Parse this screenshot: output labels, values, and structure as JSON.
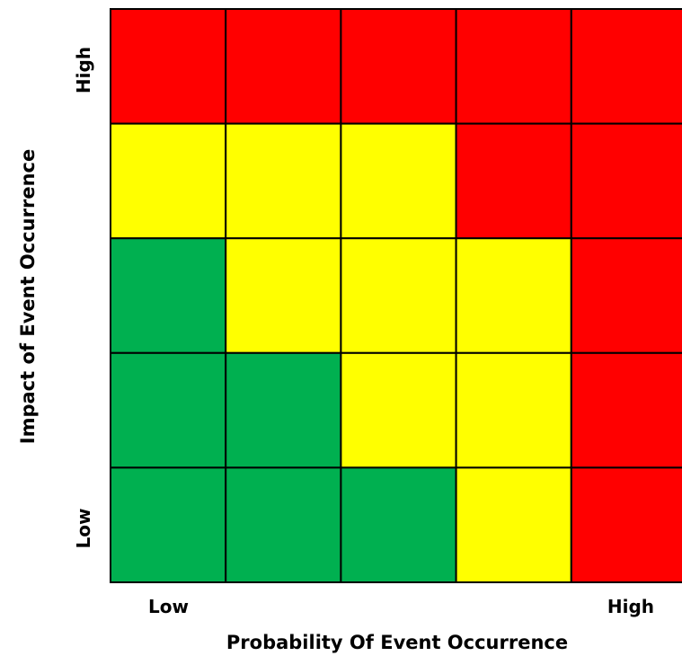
{
  "chart_data": {
    "type": "heatmap",
    "xlabel": "Probability Of Event Occurrence",
    "ylabel": "Impact of Event Occurrence",
    "x_tick_labels": {
      "low": "Low",
      "high": "High"
    },
    "y_tick_labels": {
      "low": "Low",
      "high": "High"
    },
    "rows": 5,
    "cols": 5,
    "row_order": "top-to-bottom (High impact first)",
    "colors": {
      "red": "#ff0000",
      "yellow": "#ffff00",
      "green": "#00b050",
      "border": "#000000"
    },
    "cells": [
      [
        "red",
        "red",
        "red",
        "red",
        "red"
      ],
      [
        "yellow",
        "yellow",
        "yellow",
        "red",
        "red"
      ],
      [
        "green",
        "yellow",
        "yellow",
        "yellow",
        "red"
      ],
      [
        "green",
        "green",
        "yellow",
        "yellow",
        "red"
      ],
      [
        "green",
        "green",
        "green",
        "yellow",
        "red"
      ]
    ]
  }
}
